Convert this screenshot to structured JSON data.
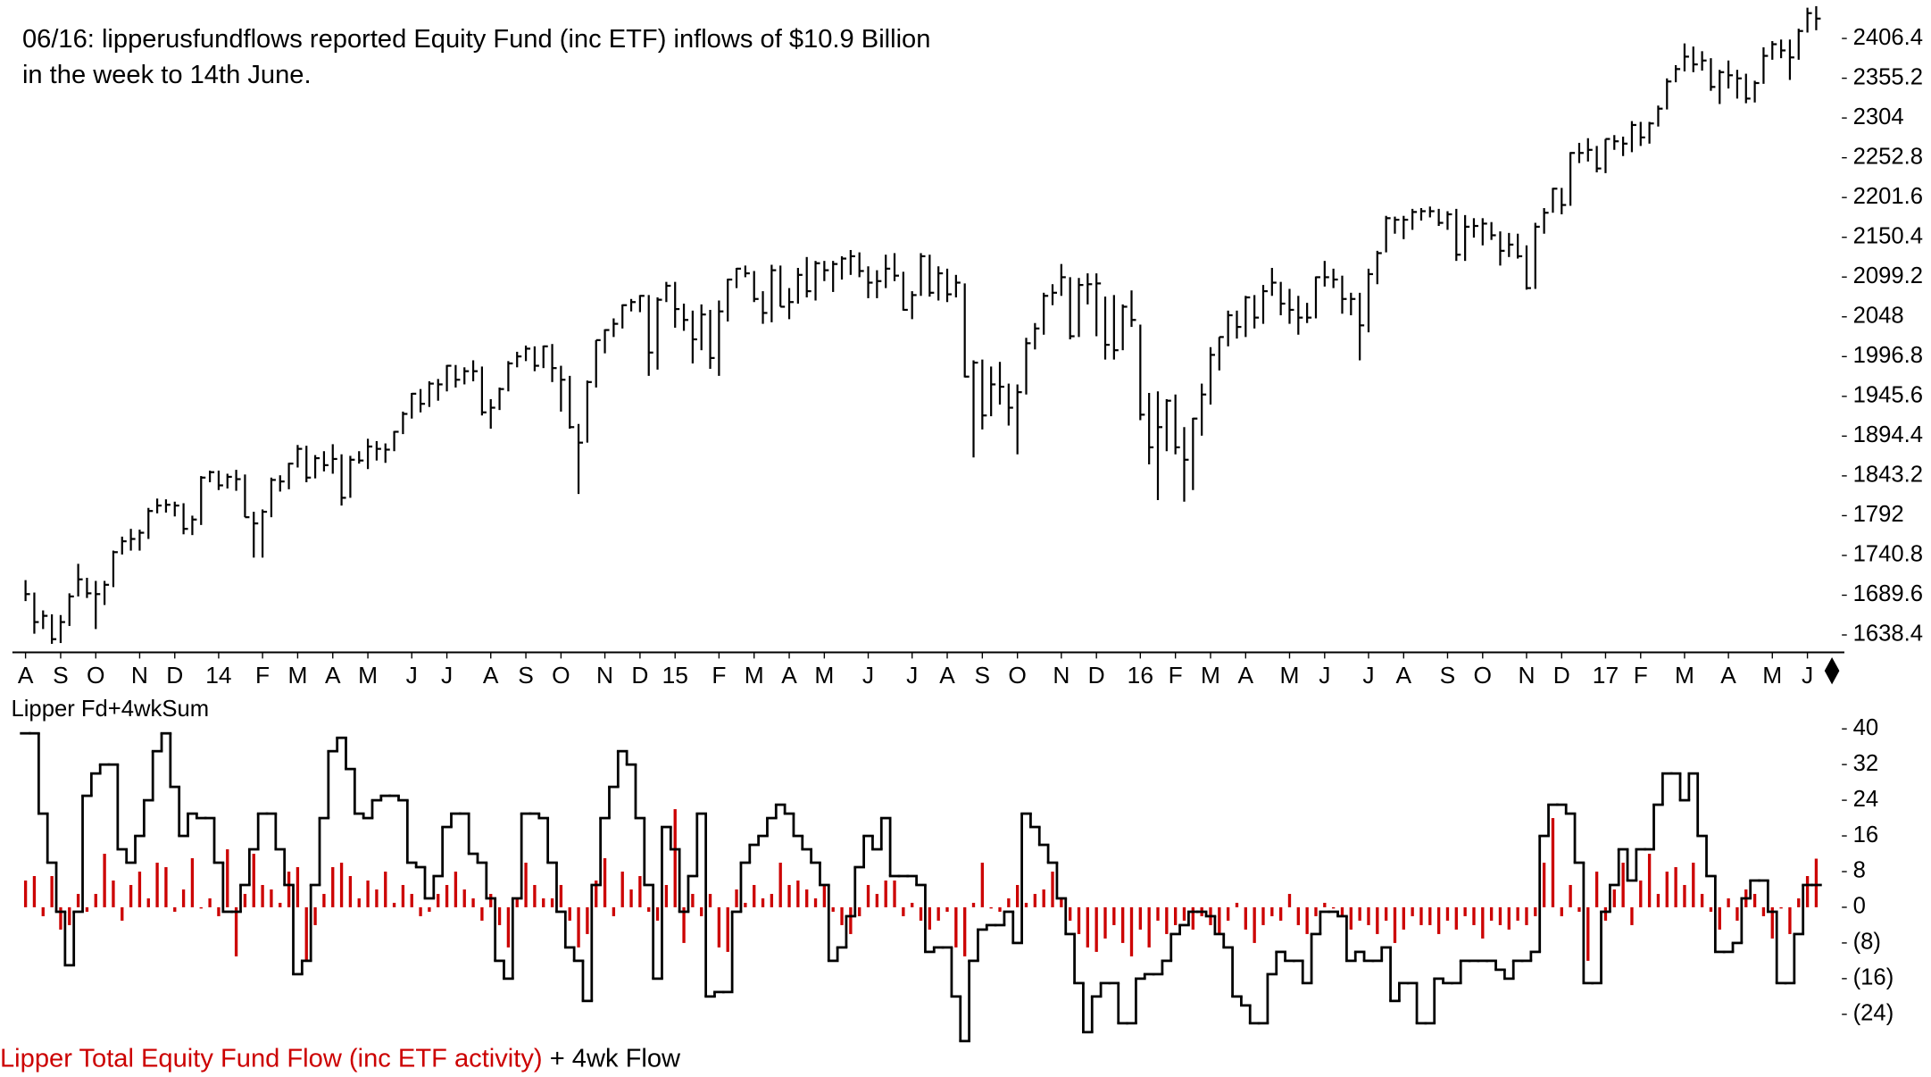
{
  "chart_data": [
    {
      "type": "ohlc",
      "annotation": [
        "06/16: lipperusfundflows reported Equity Fund (inc ETF) inflows of $10.9 Billion",
        "in the week to 14th June."
      ],
      "color": "#000000",
      "xlim": [
        -1.5,
        206.5
      ],
      "xticks": [
        {
          "value": 0,
          "label": "A"
        },
        {
          "value": 4,
          "label": "S"
        },
        {
          "value": 8,
          "label": "O"
        },
        {
          "value": 13,
          "label": "N"
        },
        {
          "value": 17,
          "label": "D"
        },
        {
          "value": 22,
          "label": "14"
        },
        {
          "value": 27,
          "label": "F"
        },
        {
          "value": 31,
          "label": "M"
        },
        {
          "value": 35,
          "label": "A"
        },
        {
          "value": 39,
          "label": "M"
        },
        {
          "value": 44,
          "label": "J"
        },
        {
          "value": 48,
          "label": "J"
        },
        {
          "value": 53,
          "label": "A"
        },
        {
          "value": 57,
          "label": "S"
        },
        {
          "value": 61,
          "label": "O"
        },
        {
          "value": 66,
          "label": "N"
        },
        {
          "value": 70,
          "label": "D"
        },
        {
          "value": 74,
          "label": "15"
        },
        {
          "value": 79,
          "label": "F"
        },
        {
          "value": 83,
          "label": "M"
        },
        {
          "value": 87,
          "label": "A"
        },
        {
          "value": 91,
          "label": "M"
        },
        {
          "value": 96,
          "label": "J"
        },
        {
          "value": 101,
          "label": "J"
        },
        {
          "value": 105,
          "label": "A"
        },
        {
          "value": 109,
          "label": "S"
        },
        {
          "value": 113,
          "label": "O"
        },
        {
          "value": 118,
          "label": "N"
        },
        {
          "value": 122,
          "label": "D"
        },
        {
          "value": 127,
          "label": "16"
        },
        {
          "value": 131,
          "label": "F"
        },
        {
          "value": 135,
          "label": "M"
        },
        {
          "value": 139,
          "label": "A"
        },
        {
          "value": 144,
          "label": "M"
        },
        {
          "value": 148,
          "label": "J"
        },
        {
          "value": 153,
          "label": "J"
        },
        {
          "value": 157,
          "label": "A"
        },
        {
          "value": 162,
          "label": "S"
        },
        {
          "value": 166,
          "label": "O"
        },
        {
          "value": 171,
          "label": "N"
        },
        {
          "value": 175,
          "label": "D"
        },
        {
          "value": 180,
          "label": "17"
        },
        {
          "value": 184,
          "label": "F"
        },
        {
          "value": 189,
          "label": "M"
        },
        {
          "value": 194,
          "label": "A"
        },
        {
          "value": 199,
          "label": "M"
        },
        {
          "value": 203,
          "label": "J"
        }
      ],
      "ylim": [
        1616,
        2448
      ],
      "yticks": [
        1638.4,
        1689.6,
        1740.8,
        1792,
        1843.2,
        1894.4,
        1945.6,
        1996.8,
        2048,
        2099.2,
        2150.4,
        2201.6,
        2252.8,
        2304,
        2355.2,
        2406.4
      ],
      "high": [
        1709,
        1693,
        1670,
        1665,
        1664,
        1692,
        1730,
        1712,
        1708,
        1708,
        1747,
        1765,
        1775,
        1774,
        1802,
        1814,
        1813,
        1810,
        1808,
        1792,
        1843,
        1850,
        1850,
        1846,
        1851,
        1845,
        1797,
        1800,
        1841,
        1844,
        1860,
        1883,
        1882,
        1870,
        1875,
        1884,
        1871,
        1869,
        1875,
        1891,
        1888,
        1885,
        1901,
        1926,
        1950,
        1955,
        1965,
        1968,
        1986,
        1986,
        1983,
        1992,
        1984,
        1942,
        1957,
        1991,
        2003,
        2011,
        2010,
        2011,
        2013,
        1985,
        1972,
        1910,
        1966,
        2018,
        2032,
        2046,
        2064,
        2071,
        2076,
        2076,
        2073,
        2093,
        2093,
        2065,
        2056,
        2064,
        2057,
        2069,
        2097,
        2111,
        2114,
        2107,
        2081,
        2115,
        2114,
        2085,
        2111,
        2125,
        2120,
        2120,
        2120,
        2126,
        2134,
        2131,
        2113,
        2108,
        2128,
        2130,
        2106,
        2081,
        2130,
        2128,
        2113,
        2110,
        2102,
        2091,
        1992,
        1993,
        1984,
        1990,
        1962,
        1961,
        2021,
        2040,
        2079,
        2090,
        2116,
        2099,
        2098,
        2104,
        2104,
        2074,
        2076,
        2064,
        2082,
        2038,
        1950,
        1952,
        1942,
        1948,
        1906,
        1918,
        1962,
        2009,
        2022,
        2056,
        2056,
        2075,
        2076,
        2089,
        2111,
        2093,
        2084,
        2075,
        2066,
        2100,
        2120,
        2110,
        2101,
        2079,
        2079,
        2110,
        2133,
        2178,
        2177,
        2178,
        2187,
        2188,
        2190,
        2187,
        2184,
        2187,
        2179,
        2175,
        2175,
        2170,
        2158,
        2156,
        2155,
        2140,
        2169,
        2188,
        2214,
        2214,
        2260,
        2272,
        2278,
        2268,
        2277,
        2282,
        2280,
        2300,
        2299,
        2299,
        2320,
        2355,
        2372,
        2400,
        2396,
        2390,
        2381,
        2366,
        2378,
        2366,
        2361,
        2352,
        2395,
        2403,
        2405,
        2405,
        2419,
        2446,
        2448
      ],
      "low": [
        1682,
        1640,
        1646,
        1627,
        1628,
        1650,
        1688,
        1686,
        1646,
        1677,
        1700,
        1742,
        1747,
        1747,
        1762,
        1795,
        1796,
        1791,
        1768,
        1767,
        1780,
        1835,
        1825,
        1827,
        1824,
        1790,
        1738,
        1738,
        1790,
        1823,
        1826,
        1854,
        1835,
        1840,
        1849,
        1846,
        1805,
        1815,
        1859,
        1852,
        1863,
        1860,
        1875,
        1897,
        1917,
        1925,
        1932,
        1940,
        1952,
        1957,
        1961,
        1965,
        1921,
        1904,
        1928,
        1952,
        1983,
        1991,
        1978,
        1982,
        1964,
        1926,
        1904,
        1820,
        1886,
        1957,
        2001,
        2022,
        2033,
        2055,
        2054,
        1972,
        1980,
        2067,
        2034,
        2030,
        1988,
        2005,
        1981,
        1972,
        2042,
        2085,
        2099,
        2067,
        2039,
        2041,
        2061,
        2045,
        2065,
        2073,
        2069,
        2094,
        2080,
        2096,
        2102,
        2099,
        2072,
        2072,
        2085,
        2094,
        2056,
        2045,
        2075,
        2074,
        2069,
        2067,
        2073,
        1970,
        1867,
        1903,
        1920,
        1935,
        1908,
        1871,
        1948,
        2006,
        2025,
        2063,
        2075,
        2019,
        2022,
        2064,
        2023,
        1993,
        1993,
        2005,
        2035,
        1915,
        1858,
        1812,
        1875,
        1871,
        1810,
        1825,
        1895,
        1935,
        1979,
        2010,
        2020,
        2022,
        2033,
        2039,
        2075,
        2050,
        2039,
        2025,
        2040,
        2046,
        2087,
        2085,
        2052,
        2050,
        1992,
        2028,
        2090,
        2131,
        2155,
        2148,
        2160,
        2172,
        2176,
        2165,
        2160,
        2120,
        2120,
        2150,
        2140,
        2147,
        2114,
        2125,
        2123,
        2083,
        2084,
        2155,
        2182,
        2180,
        2191,
        2246,
        2248,
        2234,
        2233,
        2263,
        2255,
        2260,
        2268,
        2271,
        2293,
        2315,
        2350,
        2364,
        2363,
        2365,
        2339,
        2322,
        2342,
        2329,
        2323,
        2324,
        2348,
        2379,
        2381,
        2353,
        2379,
        2414,
        2417
      ],
      "close": [
        1691,
        1655,
        1663,
        1633,
        1655,
        1688,
        1710,
        1692,
        1691,
        1703,
        1745,
        1759,
        1762,
        1770,
        1798,
        1805,
        1806,
        1805,
        1775,
        1787,
        1841,
        1848,
        1831,
        1842,
        1839,
        1790,
        1782,
        1797,
        1838,
        1836,
        1859,
        1878,
        1841,
        1866,
        1857,
        1865,
        1815,
        1864,
        1863,
        1881,
        1878,
        1877,
        1900,
        1923,
        1949,
        1936,
        1962,
        1961,
        1985,
        1967,
        1978,
        1978,
        1925,
        1931,
        1955,
        1988,
        1997,
        2007,
        1985,
        2010,
        1982,
        1967,
        1906,
        1886,
        1964,
        2018,
        2031,
        2039,
        2063,
        2067,
        2075,
        2002,
        2070,
        2088,
        2058,
        2044,
        2019,
        2051,
        1995,
        2055,
        2096,
        2110,
        2104,
        2071,
        2053,
        2108,
        2061,
        2067,
        2102,
        2081,
        2117,
        2108,
        2116,
        2123,
        2126,
        2107,
        2092,
        2094,
        2110,
        2101,
        2057,
        2076,
        2126,
        2079,
        2104,
        2077,
        2092,
        1971,
        1989,
        1921,
        1961,
        1958,
        1931,
        1951,
        2014,
        2033,
        2075,
        2079,
        2099,
        2023,
        2089,
        2090,
        2091,
        2012,
        2005,
        2061,
        2044,
        1922,
        1880,
        1906,
        1940,
        1880,
        1864,
        1917,
        1948,
        1999,
        2022,
        2050,
        2035,
        2073,
        2047,
        2081,
        2092,
        2065,
        2057,
        2047,
        2047,
        2099,
        2099,
        2096,
        2071,
        2071,
        2037,
        2103,
        2130,
        2175,
        2173,
        2173,
        2183,
        2184,
        2184,
        2169,
        2180,
        2128,
        2164,
        2165,
        2168,
        2153,
        2133,
        2141,
        2126,
        2085,
        2164,
        2182,
        2213,
        2192,
        2259,
        2259,
        2263,
        2239,
        2277,
        2274,
        2271,
        2295,
        2279,
        2297,
        2316,
        2351,
        2367,
        2383,
        2373,
        2378,
        2344,
        2363,
        2359,
        2355,
        2329,
        2349,
        2384,
        2399,
        2391,
        2382,
        2416,
        2439,
        2432
      ]
    },
    {
      "type": "bar_step",
      "panel_label": "Lipper Fd+4wkSum",
      "legend_joiner": "+",
      "xlim": [
        -1.5,
        206.5
      ],
      "ylim": [
        -30.6,
        40.6
      ],
      "yticks": [
        40,
        32,
        24,
        16,
        8,
        0,
        {
          "value": -8,
          "label": "(8)"
        },
        {
          "value": -16,
          "label": "(16)"
        },
        {
          "value": -24,
          "label": "(24)"
        }
      ],
      "series": [
        {
          "name": "Lipper Total Equity Fund Flow (inc ETF activity)",
          "color": "#cc0000",
          "kind": "bar",
          "values": [
            6,
            7,
            -2,
            7,
            -5,
            -4,
            3,
            -1,
            3,
            12,
            6,
            -3,
            5,
            8,
            2,
            10,
            9,
            -1,
            4,
            11,
            0,
            2,
            -2,
            13,
            -11,
            3,
            12,
            5,
            4,
            1,
            8,
            9,
            -12,
            -4,
            3,
            9,
            10,
            7,
            2,
            6,
            4,
            8,
            1,
            5,
            3,
            -2,
            -1,
            3,
            5,
            8,
            4,
            2,
            -3,
            3,
            -4,
            -9,
            2,
            10,
            5,
            2,
            2,
            5,
            -3,
            -9,
            -6,
            6,
            11,
            -2,
            8,
            4,
            7,
            -1,
            -3,
            5,
            22,
            -8,
            3,
            -2,
            3,
            -9,
            -10,
            4,
            1,
            5,
            2,
            3,
            10,
            5,
            6,
            4,
            2,
            5,
            -1,
            -4,
            -6,
            -2,
            5,
            3,
            6,
            6,
            -2,
            1,
            -3,
            -5,
            -3,
            -1,
            -9,
            -11,
            1,
            10,
            0,
            -1,
            2,
            5,
            1,
            3,
            4,
            8,
            2,
            -3,
            -6,
            -9,
            -10,
            -7,
            -4,
            -8,
            -11,
            -5,
            -9,
            -3,
            -6,
            -4,
            -3,
            -5,
            -2,
            -4,
            -6,
            -3,
            1,
            -5,
            -8,
            -4,
            -2,
            -3,
            3,
            -4,
            -6,
            -2,
            1,
            0,
            -2,
            -5,
            -3,
            -4,
            -6,
            -3,
            -8,
            -5,
            -2,
            -4,
            -4,
            -6,
            -3,
            -5,
            -2,
            -4,
            -7,
            -3,
            -4,
            -5,
            -3,
            -4,
            -2,
            10,
            20,
            -2,
            5,
            -1,
            -12,
            8,
            -3,
            4,
            10,
            -4,
            6,
            12,
            3,
            8,
            9,
            5,
            10,
            3,
            -1,
            -5,
            2,
            -3,
            4,
            3,
            -2,
            -7,
            0,
            -6,
            2,
            7,
            10.9
          ]
        },
        {
          "name": "4wk Flow",
          "color": "#000000",
          "kind": "step",
          "values": [
            39,
            39,
            21,
            10,
            -1,
            -13,
            -1,
            25,
            30,
            32,
            32,
            13,
            10,
            16,
            24,
            35,
            39,
            27,
            16,
            21,
            20,
            20,
            10,
            -1,
            -1,
            5,
            13,
            21,
            21,
            13,
            5,
            -15,
            -12,
            5,
            20,
            35,
            38,
            31,
            21,
            20,
            24,
            25,
            25,
            24,
            10,
            9,
            2,
            7,
            18,
            21,
            21,
            12,
            10,
            2,
            -12,
            -16,
            2,
            21,
            21,
            20,
            10,
            -1,
            -9,
            -12,
            -21,
            5,
            20,
            27,
            35,
            32,
            20,
            5,
            -16,
            18,
            13,
            -1,
            7,
            21,
            -20,
            -19,
            -19,
            -1,
            10,
            14,
            16,
            20,
            23,
            21,
            16,
            13,
            10,
            5,
            -12,
            -9,
            -2,
            9,
            16,
            13,
            20,
            7,
            7,
            7,
            5,
            -10,
            -9,
            -9,
            -20,
            -30,
            -12,
            -5,
            -4,
            -4,
            -1,
            -8,
            21,
            18,
            14,
            10,
            2,
            -6,
            -17,
            -28,
            -20,
            -17,
            -17,
            -26,
            -26,
            -16,
            -15,
            -15,
            -12,
            -6,
            -4,
            -1,
            -1,
            -2,
            -6,
            -9,
            -20,
            -22,
            -26,
            -26,
            -15,
            -10,
            -12,
            -12,
            -17,
            -6,
            -1,
            -1,
            -2,
            -12,
            -10,
            -12,
            -12,
            -9,
            -21,
            -17,
            -17,
            -26,
            -26,
            -16,
            -17,
            -17,
            -12,
            -12,
            -12,
            -12,
            -14,
            -16,
            -12,
            -12,
            -10,
            16,
            23,
            23,
            21,
            10,
            -17,
            -17,
            -1,
            5,
            13,
            6,
            13,
            13,
            23,
            30,
            30,
            24,
            30,
            16,
            7,
            -10,
            -10,
            -8,
            2,
            6,
            6,
            -1,
            -17,
            -17,
            -6,
            5,
            5
          ]
        }
      ]
    }
  ]
}
